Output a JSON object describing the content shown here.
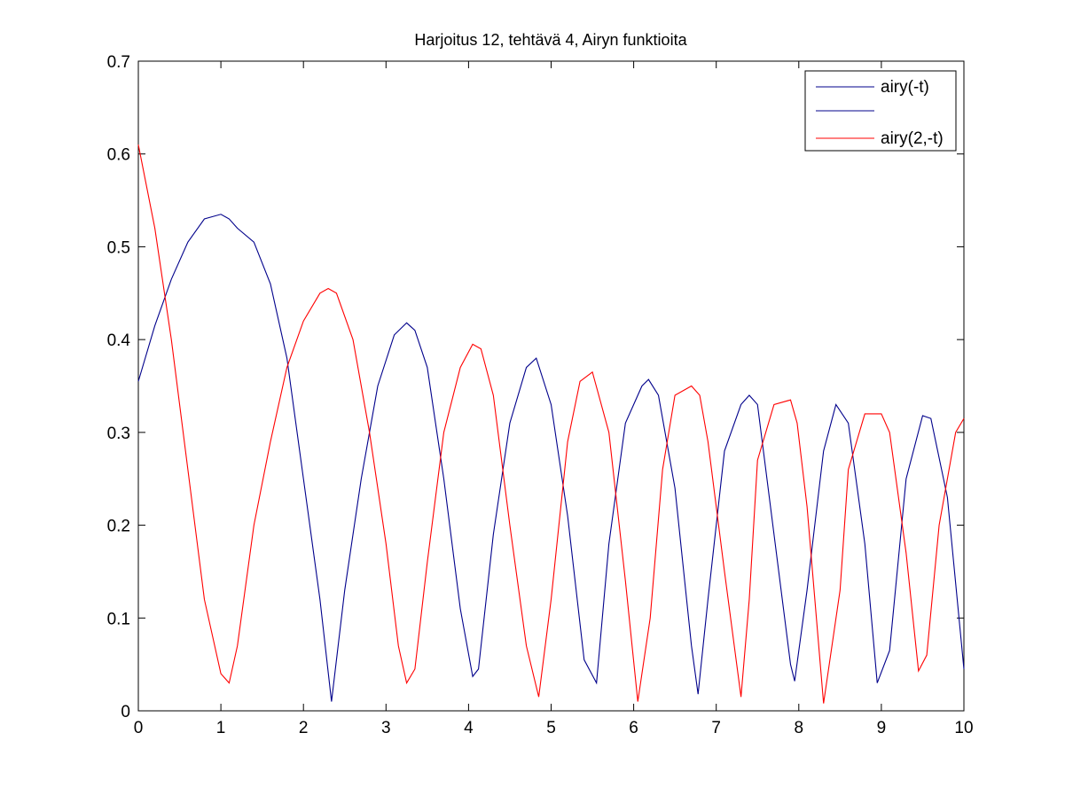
{
  "chart_data": {
    "type": "line",
    "title": "Harjoitus 12, tehtävä 4, Airyn funktioita",
    "xlabel": "",
    "ylabel": "",
    "xlim": [
      0,
      10
    ],
    "ylim": [
      0,
      0.7
    ],
    "xticks": [
      "0",
      "1",
      "2",
      "3",
      "4",
      "5",
      "6",
      "7",
      "8",
      "9",
      "10"
    ],
    "yticks": [
      "0",
      "0.1",
      "0.2",
      "0.3",
      "0.4",
      "0.5",
      "0.6",
      "0.7"
    ],
    "grid": false,
    "legend_position": "top-right",
    "legend": [
      "airy(-t)",
      "",
      "airy(2,-t)"
    ],
    "series": [
      {
        "name": "airy(-t)",
        "color": "#00008b",
        "x": [
          0,
          0.2,
          0.4,
          0.6,
          0.8,
          1.0,
          1.1,
          1.2,
          1.4,
          1.6,
          1.8,
          2.0,
          2.2,
          2.34,
          2.5,
          2.7,
          2.9,
          3.1,
          3.25,
          3.35,
          3.5,
          3.7,
          3.9,
          4.05,
          4.12,
          4.3,
          4.5,
          4.7,
          4.82,
          5.0,
          5.2,
          5.4,
          5.55,
          5.7,
          5.9,
          6.1,
          6.18,
          6.3,
          6.5,
          6.7,
          6.78,
          6.9,
          7.1,
          7.3,
          7.4,
          7.5,
          7.7,
          7.9,
          7.95,
          8.1,
          8.3,
          8.45,
          8.6,
          8.8,
          8.95,
          9.1,
          9.3,
          9.5,
          9.6,
          9.8,
          10.0
        ],
        "y": [
          0.355,
          0.415,
          0.465,
          0.505,
          0.53,
          0.535,
          0.53,
          0.52,
          0.505,
          0.46,
          0.38,
          0.25,
          0.12,
          0.01,
          0.13,
          0.25,
          0.35,
          0.405,
          0.418,
          0.41,
          0.37,
          0.25,
          0.11,
          0.037,
          0.045,
          0.19,
          0.31,
          0.37,
          0.38,
          0.33,
          0.21,
          0.055,
          0.03,
          0.18,
          0.31,
          0.35,
          0.357,
          0.34,
          0.24,
          0.07,
          0.018,
          0.12,
          0.28,
          0.33,
          0.34,
          0.33,
          0.19,
          0.05,
          0.032,
          0.13,
          0.28,
          0.33,
          0.31,
          0.18,
          0.03,
          0.065,
          0.25,
          0.318,
          0.315,
          0.23,
          0.045
        ]
      },
      {
        "name": "airy(2,-t)",
        "color": "#ff0000",
        "x": [
          0,
          0.2,
          0.4,
          0.6,
          0.8,
          1.0,
          1.1,
          1.2,
          1.4,
          1.6,
          1.8,
          2.0,
          2.2,
          2.3,
          2.4,
          2.6,
          2.8,
          3.0,
          3.15,
          3.25,
          3.35,
          3.5,
          3.7,
          3.9,
          4.05,
          4.15,
          4.3,
          4.5,
          4.7,
          4.85,
          5.0,
          5.2,
          5.35,
          5.5,
          5.7,
          5.9,
          6.05,
          6.2,
          6.35,
          6.5,
          6.7,
          6.8,
          6.9,
          7.1,
          7.3,
          7.4,
          7.5,
          7.7,
          7.9,
          7.98,
          8.1,
          8.3,
          8.5,
          8.6,
          8.8,
          9.0,
          9.1,
          9.3,
          9.45,
          9.55,
          9.7,
          9.9,
          10.0
        ],
        "y": [
          0.61,
          0.52,
          0.4,
          0.26,
          0.12,
          0.04,
          0.03,
          0.07,
          0.2,
          0.29,
          0.37,
          0.42,
          0.45,
          0.455,
          0.45,
          0.4,
          0.3,
          0.18,
          0.07,
          0.03,
          0.045,
          0.16,
          0.3,
          0.37,
          0.395,
          0.39,
          0.34,
          0.2,
          0.07,
          0.015,
          0.12,
          0.29,
          0.355,
          0.365,
          0.3,
          0.14,
          0.01,
          0.1,
          0.26,
          0.34,
          0.35,
          0.34,
          0.29,
          0.15,
          0.015,
          0.12,
          0.27,
          0.33,
          0.335,
          0.31,
          0.22,
          0.008,
          0.13,
          0.26,
          0.32,
          0.32,
          0.3,
          0.17,
          0.043,
          0.06,
          0.2,
          0.3,
          0.315
        ]
      }
    ]
  }
}
